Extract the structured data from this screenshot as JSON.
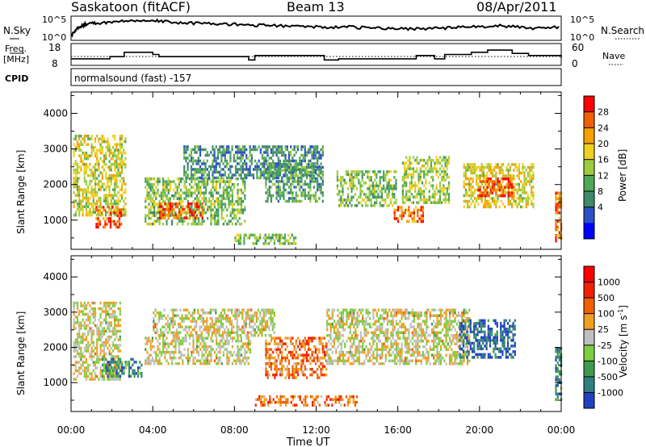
{
  "header": {
    "title": "Saskatoon (fitACF)",
    "beam": "Beam 13",
    "date": "08/Apr/2011"
  },
  "noise_panel": {
    "left_label": "N.Sky",
    "right_label": "N.Search",
    "left_ticks": [
      "10^5",
      "10^0"
    ],
    "right_ticks": [
      "10^5",
      "10^0"
    ]
  },
  "freq_panel": {
    "left_label_1": "Freq.",
    "left_label_2": "[MHz]",
    "left_ticks": [
      "18",
      "8"
    ],
    "right_label": "Nave",
    "right_ticks": [
      "60",
      "0"
    ]
  },
  "cpid": {
    "label": "CPID",
    "value": "normalsound (fast) -157"
  },
  "x_axis": {
    "label": "Time UT",
    "ticks": [
      "00:00",
      "04:00",
      "08:00",
      "12:00",
      "16:00",
      "20:00",
      "00:00"
    ]
  },
  "chart_data": [
    {
      "type": "heatmap",
      "name": "power",
      "ylabel": "Slant Range [km]",
      "yticks": [
        1000,
        2000,
        3000,
        4000
      ],
      "ylim": [
        180,
        4600
      ],
      "xlim_hours": [
        0,
        24
      ],
      "colorbar_label": "Power [dB]",
      "colorbar_ticks": [
        "28",
        "24",
        "20",
        "16",
        "12",
        "8",
        "4"
      ],
      "colors": [
        "#0000ff",
        "#2b4fc4",
        "#3f8a6a",
        "#4fa85a",
        "#9ccc40",
        "#f0d020",
        "#f6a000",
        "#f06000",
        "#ff0000"
      ],
      "regions": [
        {
          "t0": 0.1,
          "t1": 2.7,
          "r0": 1100,
          "r1": 3400,
          "level": 0.55
        },
        {
          "t0": 1.2,
          "t1": 2.5,
          "r0": 800,
          "r1": 1400,
          "level": 0.85
        },
        {
          "t0": 3.6,
          "t1": 8.5,
          "r0": 900,
          "r1": 2200,
          "level": 0.45
        },
        {
          "t0": 4.3,
          "t1": 6.4,
          "r0": 1100,
          "r1": 1500,
          "level": 0.85
        },
        {
          "t0": 5.5,
          "t1": 12.3,
          "r0": 2200,
          "r1": 3100,
          "level": 0.3
        },
        {
          "t0": 9.5,
          "t1": 12.3,
          "r0": 1500,
          "r1": 2600,
          "level": 0.35
        },
        {
          "t0": 13.0,
          "t1": 15.9,
          "r0": 1400,
          "r1": 2400,
          "level": 0.45
        },
        {
          "t0": 15.8,
          "t1": 17.2,
          "r0": 1000,
          "r1": 1400,
          "level": 0.8
        },
        {
          "t0": 16.2,
          "t1": 18.5,
          "r0": 1500,
          "r1": 2800,
          "level": 0.5
        },
        {
          "t0": 19.2,
          "t1": 22.6,
          "r0": 1400,
          "r1": 2600,
          "level": 0.6
        },
        {
          "t0": 19.9,
          "t1": 21.7,
          "r0": 1700,
          "r1": 2200,
          "level": 0.9
        },
        {
          "t0": 23.7,
          "t1": 24.0,
          "r0": 400,
          "r1": 1800,
          "level": 0.8
        },
        {
          "t0": 8.0,
          "t1": 11.0,
          "r0": 330,
          "r1": 620,
          "level": 0.45
        }
      ]
    },
    {
      "type": "heatmap",
      "name": "velocity",
      "ylabel": "Slant Range [km]",
      "yticks": [
        1000,
        2000,
        3000,
        4000
      ],
      "ylim": [
        180,
        4600
      ],
      "xlim_hours": [
        0,
        24
      ],
      "colorbar_label": "Velocity [m s",
      "colorbar_label_exp": "-1",
      "colorbar_label_end": "]",
      "colorbar_ticks": [
        "1000",
        "500",
        "100",
        "25",
        "-25",
        "-100",
        "-500",
        "-1000"
      ],
      "colors": [
        "#2040c0",
        "#2f7f80",
        "#3f9a50",
        "#7fce40",
        "#c0c0c0",
        "#f0a020",
        "#f06000",
        "#f02000",
        "#ff0000"
      ],
      "regions": [
        {
          "t0": 0.1,
          "t1": 2.4,
          "r0": 1100,
          "r1": 3300,
          "level": 0.5
        },
        {
          "t0": 1.5,
          "t1": 3.5,
          "r0": 1200,
          "r1": 1700,
          "level": 0.2
        },
        {
          "t0": 3.6,
          "t1": 8.8,
          "r0": 1500,
          "r1": 2300,
          "level": 0.5
        },
        {
          "t0": 4.0,
          "t1": 10.0,
          "r0": 2300,
          "r1": 3100,
          "level": 0.5
        },
        {
          "t0": 9.5,
          "t1": 12.5,
          "r0": 1100,
          "r1": 2300,
          "level": 0.7
        },
        {
          "t0": 12.5,
          "t1": 19.5,
          "r0": 1500,
          "r1": 3100,
          "level": 0.5
        },
        {
          "t0": 19.0,
          "t1": 21.7,
          "r0": 1700,
          "r1": 2800,
          "level": 0.1
        },
        {
          "t0": 23.7,
          "t1": 24.0,
          "r0": 500,
          "r1": 2000,
          "level": 0.2
        },
        {
          "t0": 9.0,
          "t1": 14.0,
          "r0": 380,
          "r1": 640,
          "level": 0.7
        }
      ]
    },
    {
      "type": "line",
      "name": "noise",
      "series": [
        {
          "x": [
            0,
            0.4,
            0.8,
            1.5,
            2.5,
            3.5,
            4.5,
            6,
            7.5,
            9,
            10.5,
            12,
            13.5,
            15,
            16.5,
            18,
            19.5,
            21,
            22.5,
            24
          ],
          "y": [
            0.2,
            0.55,
            0.7,
            0.72,
            0.8,
            0.85,
            0.78,
            0.7,
            0.68,
            0.62,
            0.6,
            0.55,
            0.55,
            0.5,
            0.48,
            0.5,
            0.55,
            0.6,
            0.5,
            0.55
          ]
        }
      ]
    },
    {
      "type": "line",
      "name": "frequency",
      "series": [
        {
          "x": [
            0,
            1.9,
            2.6,
            4.0,
            4.3,
            8.7,
            9.0,
            12.4,
            13.1,
            16.5,
            16.9,
            17.8,
            18.3,
            19.6,
            20.4,
            21.6,
            22.4,
            24
          ],
          "y": [
            11,
            12,
            14,
            13,
            12,
            10.5,
            12.5,
            10.5,
            11,
            11,
            12.5,
            11,
            13,
            14,
            15,
            13.5,
            12.5,
            11.5
          ]
        }
      ]
    }
  ]
}
